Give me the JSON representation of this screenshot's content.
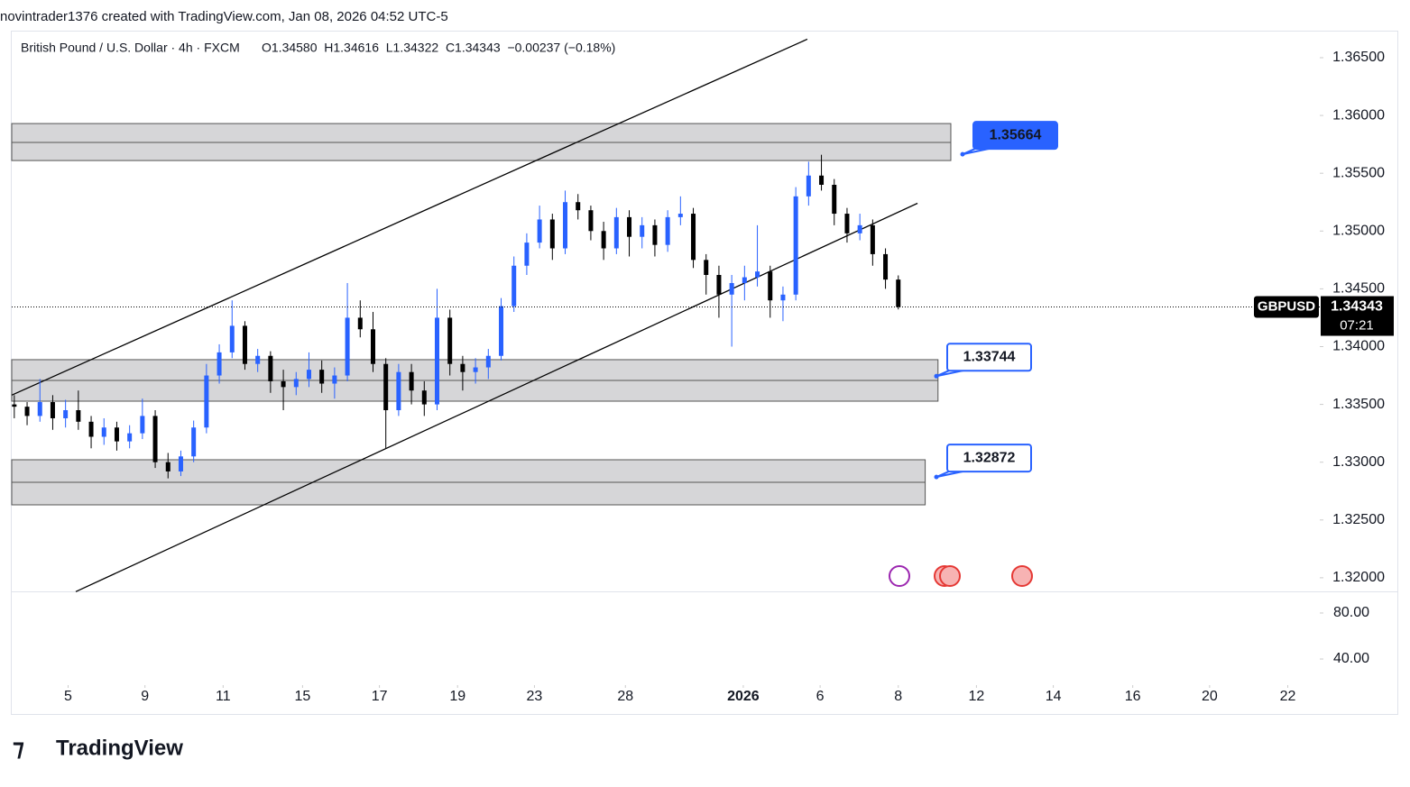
{
  "header": "novintrader1376 created with TradingView.com, Jan 08, 2026 04:52 UTC-5",
  "footer": "TradingView",
  "chart_data": {
    "type": "candlestick",
    "symbol_title": "British Pound / U.S. Dollar · 4h · FXCM",
    "ohlc_text": "O1.34580  H1.34616  L1.34322  C1.34343  −0.00237 (−0.18%)",
    "symbol": "GBPUSD",
    "last_price": {
      "value": 1.34343,
      "label": "1.34343"
    },
    "countdown": "07:21",
    "up_color": "#2962ff",
    "down_color": "#000000",
    "ohlc": [
      [
        1.335,
        1.3358,
        1.3338,
        1.3348
      ],
      [
        1.3348,
        1.3352,
        1.3332,
        1.334
      ],
      [
        1.334,
        1.3372,
        1.3335,
        1.3352
      ],
      [
        1.3352,
        1.3358,
        1.3328,
        1.3338
      ],
      [
        1.3338,
        1.3354,
        1.333,
        1.3345
      ],
      [
        1.3345,
        1.3362,
        1.3328,
        1.3335
      ],
      [
        1.3335,
        1.334,
        1.3312,
        1.3322
      ],
      [
        1.3322,
        1.3338,
        1.3315,
        1.333
      ],
      [
        1.333,
        1.3335,
        1.331,
        1.3318
      ],
      [
        1.3318,
        1.3332,
        1.3312,
        1.3325
      ],
      [
        1.3325,
        1.3355,
        1.332,
        1.334
      ],
      [
        1.334,
        1.3345,
        1.3295,
        1.33
      ],
      [
        1.33,
        1.3308,
        1.3286,
        1.3292
      ],
      [
        1.3292,
        1.331,
        1.3288,
        1.3305
      ],
      [
        1.3305,
        1.3336,
        1.33,
        1.333
      ],
      [
        1.333,
        1.3385,
        1.3325,
        1.3375
      ],
      [
        1.3375,
        1.3402,
        1.3368,
        1.3395
      ],
      [
        1.3395,
        1.344,
        1.339,
        1.3418
      ],
      [
        1.3418,
        1.3422,
        1.338,
        1.3385
      ],
      [
        1.3385,
        1.3398,
        1.3378,
        1.3392
      ],
      [
        1.3392,
        1.3396,
        1.336,
        1.337
      ],
      [
        1.337,
        1.338,
        1.3345,
        1.3365
      ],
      [
        1.3365,
        1.3378,
        1.3358,
        1.3372
      ],
      [
        1.3372,
        1.3395,
        1.3365,
        1.338
      ],
      [
        1.338,
        1.3388,
        1.336,
        1.3368
      ],
      [
        1.3368,
        1.3382,
        1.3355,
        1.3375
      ],
      [
        1.3375,
        1.3455,
        1.337,
        1.3425
      ],
      [
        1.3425,
        1.344,
        1.3408,
        1.3415
      ],
      [
        1.3415,
        1.343,
        1.3378,
        1.3385
      ],
      [
        1.3385,
        1.339,
        1.3312,
        1.3345
      ],
      [
        1.3345,
        1.3385,
        1.334,
        1.3378
      ],
      [
        1.3378,
        1.3385,
        1.335,
        1.3362
      ],
      [
        1.3362,
        1.337,
        1.334,
        1.335
      ],
      [
        1.335,
        1.345,
        1.3345,
        1.3425
      ],
      [
        1.3425,
        1.3432,
        1.3375,
        1.3385
      ],
      [
        1.3385,
        1.3392,
        1.3362,
        1.3378
      ],
      [
        1.3378,
        1.339,
        1.3368,
        1.3382
      ],
      [
        1.3382,
        1.3398,
        1.3372,
        1.3392
      ],
      [
        1.3392,
        1.3442,
        1.3388,
        1.3435
      ],
      [
        1.3435,
        1.3478,
        1.343,
        1.347
      ],
      [
        1.347,
        1.3498,
        1.3462,
        1.349
      ],
      [
        1.349,
        1.3522,
        1.3485,
        1.351
      ],
      [
        1.351,
        1.3515,
        1.3475,
        1.3485
      ],
      [
        1.3485,
        1.3535,
        1.348,
        1.3525
      ],
      [
        1.3525,
        1.3532,
        1.351,
        1.3518
      ],
      [
        1.3518,
        1.3522,
        1.3492,
        1.35
      ],
      [
        1.35,
        1.3508,
        1.3475,
        1.3485
      ],
      [
        1.3485,
        1.352,
        1.348,
        1.3512
      ],
      [
        1.3512,
        1.3518,
        1.3478,
        1.3495
      ],
      [
        1.3495,
        1.3512,
        1.3485,
        1.3505
      ],
      [
        1.3505,
        1.351,
        1.3478,
        1.3488
      ],
      [
        1.3488,
        1.3518,
        1.3482,
        1.3512
      ],
      [
        1.3512,
        1.353,
        1.3505,
        1.3515
      ],
      [
        1.3515,
        1.352,
        1.3468,
        1.3475
      ],
      [
        1.3475,
        1.348,
        1.3445,
        1.3462
      ],
      [
        1.3462,
        1.347,
        1.3425,
        1.3445
      ],
      [
        1.3445,
        1.3462,
        1.34,
        1.3455
      ],
      [
        1.3455,
        1.347,
        1.344,
        1.346
      ],
      [
        1.346,
        1.3505,
        1.3452,
        1.3465
      ],
      [
        1.3465,
        1.347,
        1.3425,
        1.344
      ],
      [
        1.344,
        1.3452,
        1.3422,
        1.3445
      ],
      [
        1.3445,
        1.3538,
        1.344,
        1.353
      ],
      [
        1.353,
        1.356,
        1.3522,
        1.3548
      ],
      [
        1.3548,
        1.3566,
        1.3535,
        1.354
      ],
      [
        1.354,
        1.3545,
        1.3505,
        1.3515
      ],
      [
        1.3515,
        1.352,
        1.349,
        1.3498
      ],
      [
        1.3498,
        1.3515,
        1.3492,
        1.3505
      ],
      [
        1.3505,
        1.351,
        1.347,
        1.348
      ],
      [
        1.348,
        1.3485,
        1.345,
        1.3458
      ],
      [
        1.3458,
        1.34616,
        1.34322,
        1.34343
      ]
    ],
    "xlim": [
      -0.2,
      101.9
    ],
    "xticks": [
      {
        "value": 4.2,
        "label": "5"
      },
      {
        "value": 10.2,
        "label": "9"
      },
      {
        "value": 16.3,
        "label": "11"
      },
      {
        "value": 22.5,
        "label": "15"
      },
      {
        "value": 28.5,
        "label": "17"
      },
      {
        "value": 34.6,
        "label": "19"
      },
      {
        "value": 40.6,
        "label": "23"
      },
      {
        "value": 47.7,
        "label": "28"
      },
      {
        "value": 56.9,
        "label": "2026"
      },
      {
        "value": 62.9,
        "label": "6"
      },
      {
        "value": 69,
        "label": "8"
      },
      {
        "value": 75.1,
        "label": "12"
      },
      {
        "value": 81.1,
        "label": "14"
      },
      {
        "value": 87.3,
        "label": "16"
      },
      {
        "value": 93.3,
        "label": "20"
      },
      {
        "value": 99.4,
        "label": "22"
      }
    ],
    "ylim": [
      1.3189,
      1.36726
    ],
    "yticks": [
      {
        "value": 1.365,
        "label": "1.36500"
      },
      {
        "value": 1.36,
        "label": "1.36000"
      },
      {
        "value": 1.355,
        "label": "1.35500"
      },
      {
        "value": 1.35,
        "label": "1.35000"
      },
      {
        "value": 1.345,
        "label": "1.34500"
      },
      {
        "value": 1.34,
        "label": "1.34000"
      },
      {
        "value": 1.335,
        "label": "1.33500"
      },
      {
        "value": 1.33,
        "label": "1.33000"
      },
      {
        "value": 1.325,
        "label": "1.32500"
      },
      {
        "value": 1.32,
        "label": "1.32000"
      }
    ],
    "zones": [
      {
        "top": 1.3593,
        "mid": 1.35767,
        "bottom": 1.3561,
        "x_end": 73.1
      },
      {
        "top": 1.33887,
        "mid": 1.33707,
        "bottom": 1.33528,
        "x_end": 72.1
      },
      {
        "top": 1.33021,
        "mid": 1.32826,
        "bottom": 1.32631,
        "x_end": 71.1
      }
    ],
    "callouts": [
      {
        "value": 1.35664,
        "label": "1.35664"
      },
      {
        "value": 1.33744,
        "label": "1.33744"
      },
      {
        "value": 1.32872,
        "label": "1.32872"
      }
    ],
    "trend_lines": [
      {
        "x": [
          -0.2,
          61.9
        ],
        "y": [
          1.3358,
          1.3666
        ]
      },
      {
        "x": [
          4.8,
          70.5
        ],
        "y": [
          1.3188,
          1.3524
        ]
      }
    ],
    "indicator": {
      "ylim": [
        17.3,
        98
      ],
      "yticks": [
        {
          "value": 80,
          "label": "80.00"
        },
        {
          "value": 40,
          "label": "40.00"
        }
      ]
    }
  }
}
